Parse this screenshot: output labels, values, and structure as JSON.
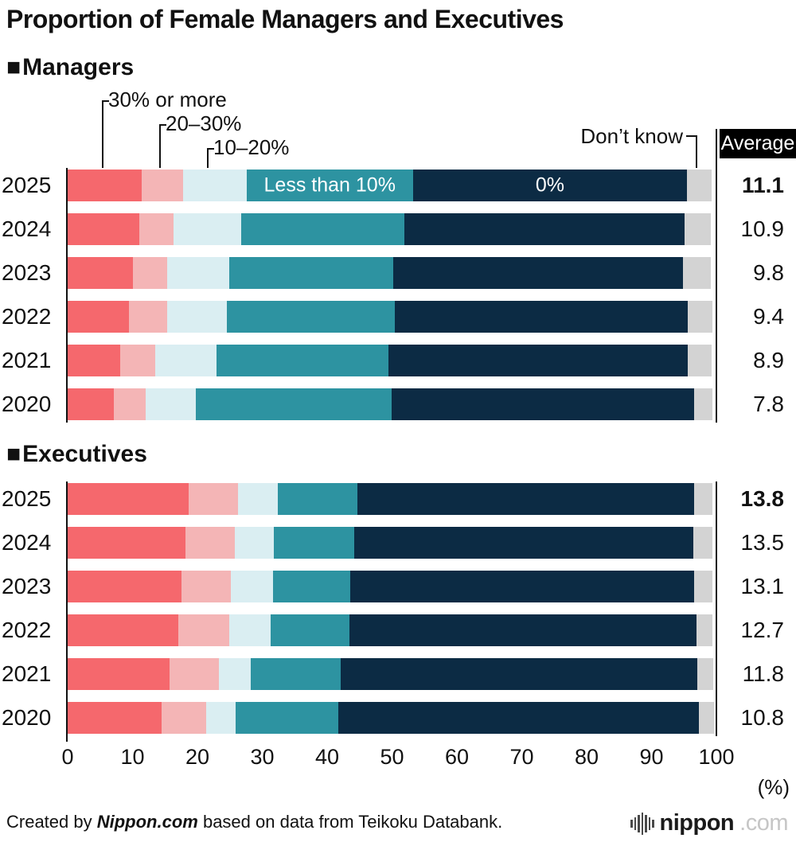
{
  "title": "Proportion of Female Managers and Executives",
  "sections": {
    "managers": {
      "marker": "■",
      "label": "Managers"
    },
    "executives": {
      "marker": "■",
      "label": "Executives"
    }
  },
  "annotations": {
    "callout_30": "30% or more",
    "callout_20_30": "20–30%",
    "callout_10_20": "10–20%",
    "inline_less_than_10": "Less than 10%",
    "inline_zero": "0%",
    "dont_know": "Don’t know",
    "average": "Average"
  },
  "axis": {
    "ticks": [
      "0",
      "10",
      "20",
      "30",
      "40",
      "50",
      "60",
      "70",
      "80",
      "90",
      "100"
    ],
    "unit": "(%)"
  },
  "footer": {
    "prefix": "Created by ",
    "brand": "Nippon.com",
    "suffix": " based on data from Teikoku Databank."
  },
  "logo": {
    "name": "nippon",
    "tld": ".com"
  },
  "colors": {
    "pct30_or_more": "#f5686d",
    "pct20_30": "#f4b5b6",
    "pct10_20": "#daeef2",
    "less_than_10": "#2d93a1",
    "zero": "#0c2b44",
    "dont_know": "#d3d3d3",
    "average_box": "#000000"
  },
  "chart_data": [
    {
      "type": "bar",
      "stacked": true,
      "orientation": "horizontal",
      "title": "Managers",
      "categories": [
        "2025",
        "2024",
        "2023",
        "2022",
        "2021",
        "2020"
      ],
      "series": [
        {
          "name": "30% or more",
          "color": "#f5686d",
          "values": [
            11.4,
            11.0,
            10.1,
            9.4,
            8.1,
            7.1
          ]
        },
        {
          "name": "20–30%",
          "color": "#f4b5b6",
          "values": [
            6.4,
            5.3,
            5.2,
            5.9,
            5.4,
            4.9
          ]
        },
        {
          "name": "10–20%",
          "color": "#daeef2",
          "values": [
            9.8,
            10.5,
            9.6,
            9.2,
            9.4,
            7.8
          ]
        },
        {
          "name": "Less than 10%",
          "color": "#2d93a1",
          "values": [
            25.6,
            25.1,
            25.3,
            25.9,
            26.5,
            30.1
          ]
        },
        {
          "name": "0%",
          "color": "#0c2b44",
          "values": [
            42.3,
            43.2,
            44.6,
            45.2,
            46.2,
            46.7
          ]
        },
        {
          "name": "Don’t know",
          "color": "#d3d3d3",
          "values": [
            3.8,
            4.0,
            4.4,
            3.8,
            3.7,
            2.8
          ]
        }
      ],
      "averages": [
        "11.1",
        "10.9",
        "9.8",
        "9.4",
        "8.9",
        "7.8"
      ],
      "inline_label_series": [
        3,
        4
      ],
      "xlim": [
        0,
        100
      ],
      "legend_position": "top-callouts",
      "grid": false
    },
    {
      "type": "bar",
      "stacked": true,
      "orientation": "horizontal",
      "title": "Executives",
      "categories": [
        "2025",
        "2024",
        "2023",
        "2022",
        "2021",
        "2020"
      ],
      "series": [
        {
          "name": "30% or more",
          "color": "#f5686d",
          "values": [
            18.6,
            18.2,
            17.6,
            17.0,
            15.7,
            14.5
          ]
        },
        {
          "name": "20–30%",
          "color": "#f4b5b6",
          "values": [
            7.7,
            7.6,
            7.6,
            7.9,
            7.6,
            6.8
          ]
        },
        {
          "name": "10–20%",
          "color": "#daeef2",
          "values": [
            6.1,
            6.0,
            6.4,
            6.4,
            4.9,
            4.6
          ]
        },
        {
          "name": "Less than 10%",
          "color": "#2d93a1",
          "values": [
            12.3,
            12.4,
            12.0,
            12.1,
            13.9,
            15.8
          ]
        },
        {
          "name": "0%",
          "color": "#0c2b44",
          "values": [
            51.9,
            52.3,
            53.0,
            53.5,
            55.0,
            55.6
          ]
        },
        {
          "name": "Don’t know",
          "color": "#d3d3d3",
          "values": [
            2.8,
            2.9,
            2.8,
            2.5,
            2.4,
            2.3
          ]
        }
      ],
      "averages": [
        "13.8",
        "13.5",
        "13.1",
        "12.7",
        "11.8",
        "10.8"
      ],
      "xlim": [
        0,
        100
      ],
      "grid": false
    }
  ]
}
